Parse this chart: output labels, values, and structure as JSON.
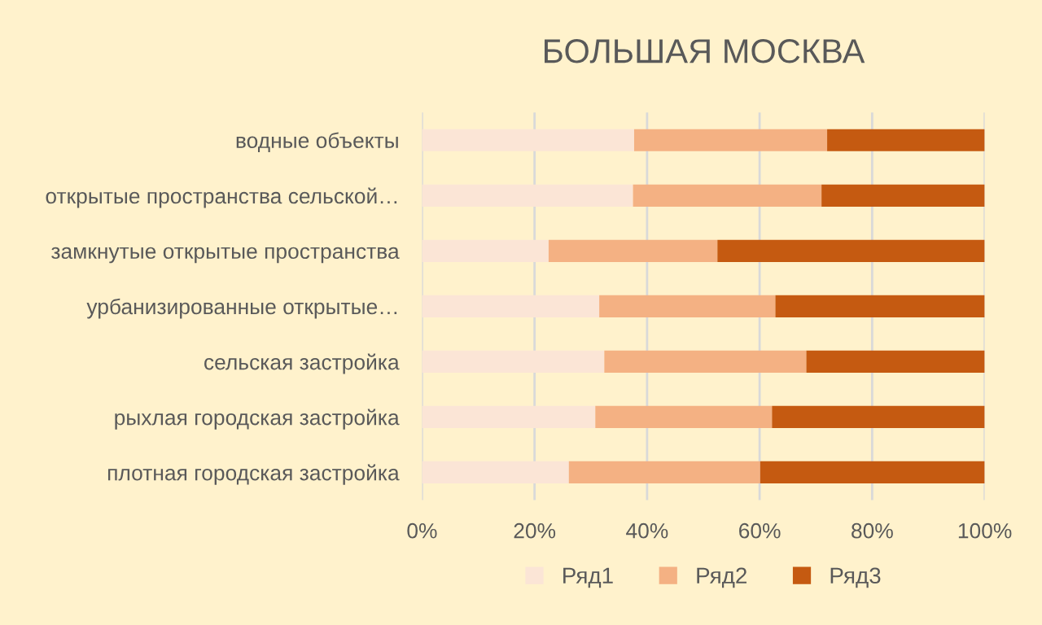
{
  "chart_data": {
    "type": "bar",
    "title": "БОЛЬШАЯ МОСКВА",
    "orientation": "horizontal",
    "stacked": true,
    "categories": [
      "водные объекты",
      "открытые пространства сельской…",
      "замкнутые открытые пространства",
      "урбанизированные открытые…",
      "сельская застройка",
      "рыхлая городская застройка",
      "плотная городская застройка"
    ],
    "series": [
      {
        "name": "Ряд1",
        "color": "#fbe5d6",
        "values": [
          37.7,
          37.5,
          22.5,
          31.5,
          32.4,
          30.8,
          26.1
        ]
      },
      {
        "name": "Ряд2",
        "color": "#f4b183",
        "values": [
          34.3,
          33.5,
          30.0,
          31.3,
          35.9,
          31.4,
          34.0
        ]
      },
      {
        "name": "Ряд3",
        "color": "#c55a11",
        "values": [
          28.0,
          29.0,
          47.5,
          37.2,
          31.7,
          37.8,
          39.9
        ]
      }
    ],
    "xlim": [
      0,
      100
    ],
    "xticks": [
      {
        "value": 0,
        "label": "0%"
      },
      {
        "value": 20,
        "label": "20%"
      },
      {
        "value": 40,
        "label": "40%"
      },
      {
        "value": 60,
        "label": "60%"
      },
      {
        "value": 80,
        "label": "80%"
      },
      {
        "value": 100,
        "label": "100%"
      }
    ],
    "grid": "x",
    "legend": "bottom"
  }
}
